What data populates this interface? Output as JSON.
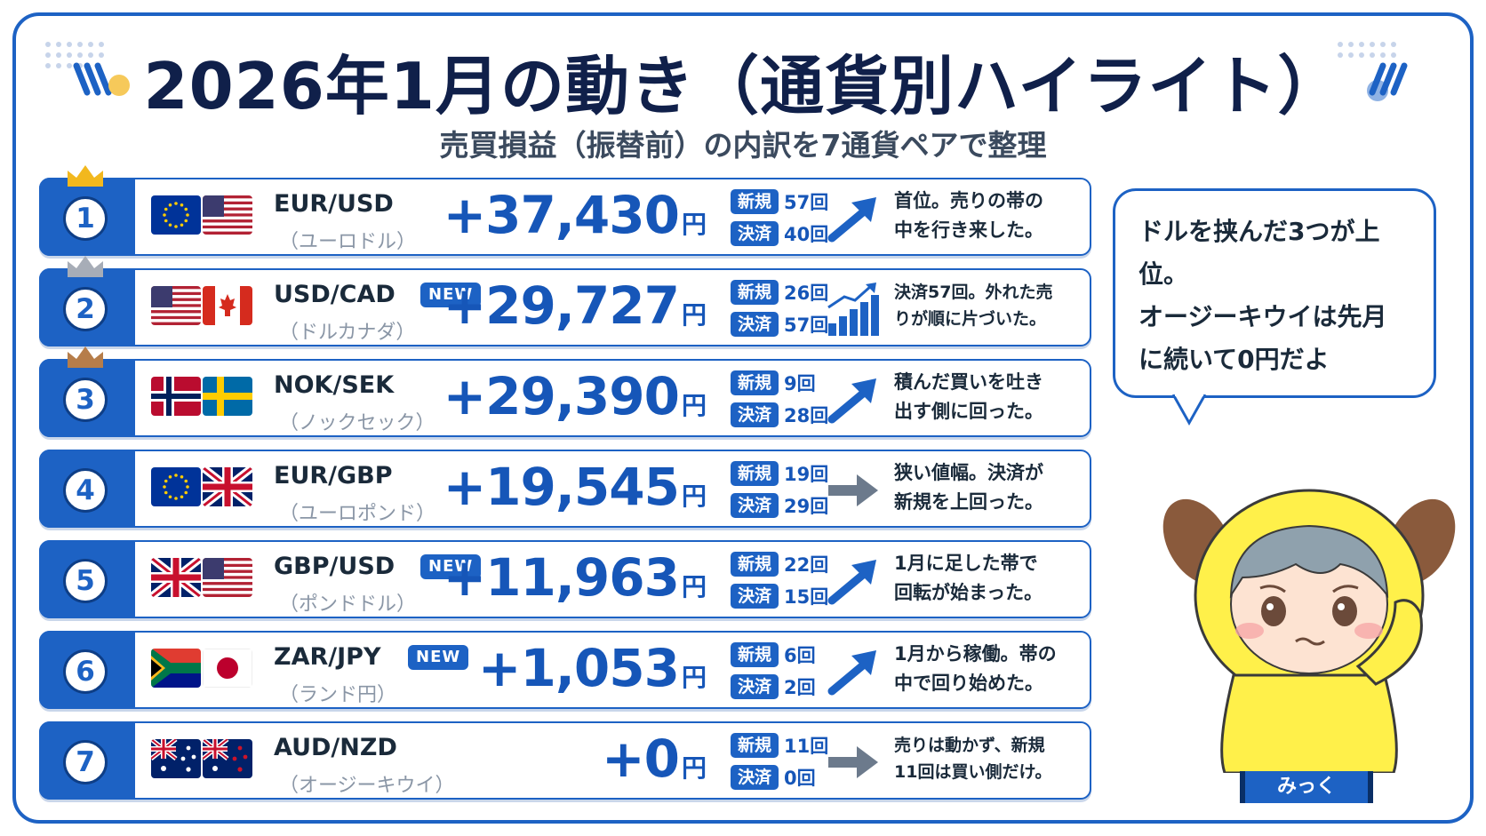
{
  "title": "2026年1月の動き（通貨別ハイライト）",
  "subtitle": "売買損益（振替前）の内訳を7通貨ペアで整理",
  "stat_labels": {
    "new": "新規",
    "settle": "決済"
  },
  "yen_unit": "円",
  "new_badge": "NEW",
  "rows": [
    {
      "rank": "1",
      "pair": "EUR/USD",
      "name_ja": "（ユーロドル）",
      "amount": "+37,430",
      "new_count": "57回",
      "settle_count": "40回",
      "trend": "up-arrow",
      "comment": "首位。売りの帯の\n中を行き来した。",
      "is_new": false,
      "crown_color": "#f2b81e"
    },
    {
      "rank": "2",
      "pair": "USD/CAD",
      "name_ja": "（ドルカナダ）",
      "amount": "+29,727",
      "new_count": "26回",
      "settle_count": "57回",
      "trend": "bar-chart-up",
      "comment": "決済57回。外れた売\nりが順に片づいた。",
      "is_new": true,
      "crown_color": "#a7adb7"
    },
    {
      "rank": "3",
      "pair": "NOK/SEK",
      "name_ja": "（ノックセック）",
      "amount": "+29,390",
      "new_count": "9回",
      "settle_count": "28回",
      "trend": "up-arrow",
      "comment": "積んだ買いを吐き\n出す側に回った。",
      "is_new": false,
      "crown_color": "#b67d4a"
    },
    {
      "rank": "4",
      "pair": "EUR/GBP",
      "name_ja": "（ユーロポンド）",
      "amount": "+19,545",
      "new_count": "19回",
      "settle_count": "29回",
      "trend": "right-arrow",
      "comment": "狭い値幅。決済が\n新規を上回った。",
      "is_new": false
    },
    {
      "rank": "5",
      "pair": "GBP/USD",
      "name_ja": "（ポンドドル）",
      "amount": "+11,963",
      "new_count": "22回",
      "settle_count": "15回",
      "trend": "up-arrow",
      "comment": "1月に足した帯で\n回転が始まった。",
      "is_new": true
    },
    {
      "rank": "6",
      "pair": "ZAR/JPY",
      "name_ja": "（ランド円）",
      "amount": "+1,053",
      "new_count": "6回",
      "settle_count": "2回",
      "trend": "up-arrow",
      "comment": "1月から稼働。帯の\n中で回り始めた。",
      "is_new": true
    },
    {
      "rank": "7",
      "pair": "AUD/NZD",
      "name_ja": "（オージーキウイ）",
      "amount": "+0",
      "new_count": "11回",
      "settle_count": "0回",
      "trend": "right-arrow",
      "comment": "売りは動かず、新規\n11回は買い側だけ。",
      "is_new": false
    }
  ],
  "speech_bubble": "ドルを挟んだ3つが上\n位。\nオージーキウイは先月\nに続いて0円だよ",
  "character_name": "みっく",
  "colors": {
    "accent": "#1d62c4",
    "amount": "#1656b8",
    "text": "#1a2a3a"
  }
}
